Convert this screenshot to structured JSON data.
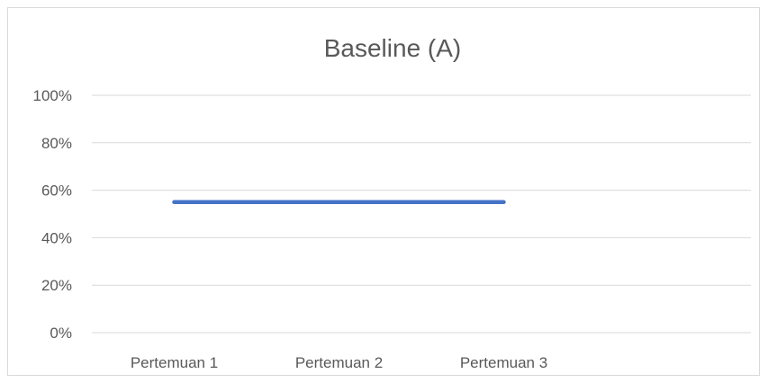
{
  "chart_data": {
    "type": "line",
    "title": "Baseline (A)",
    "xlabel": "",
    "ylabel": "",
    "categories": [
      "Pertemuan 1",
      "Pertemuan 2",
      "Pertemuan 3"
    ],
    "series": [
      {
        "values": [
          55,
          55,
          55
        ],
        "color": "#4472c4"
      }
    ],
    "ylim": [
      0,
      100
    ],
    "y_ticks": [
      0,
      20,
      40,
      60,
      80,
      100
    ],
    "y_tick_labels": [
      "0%",
      "20%",
      "40%",
      "60%",
      "80%",
      "100%"
    ],
    "x_slots": 4,
    "grid": true,
    "legend": "none"
  }
}
